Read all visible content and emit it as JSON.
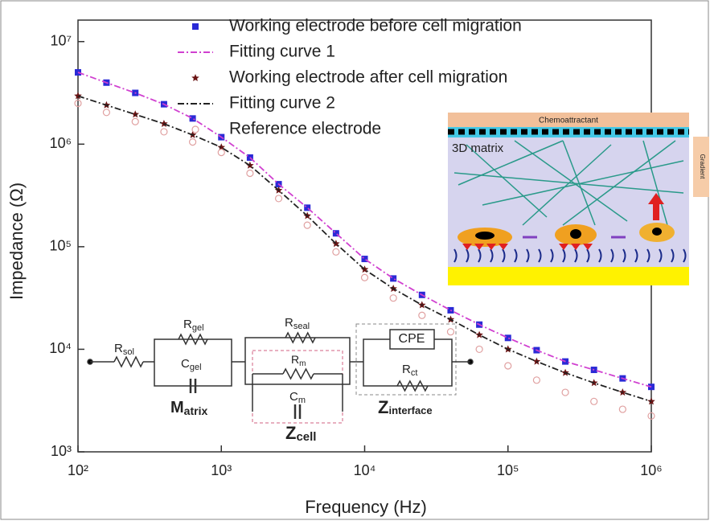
{
  "chart_data": {
    "type": "scatter",
    "xlabel": "Frequency (Hz)",
    "ylabel": "Impedance (Ω)",
    "log_x": true,
    "log_y": true,
    "xlim": [
      100,
      1000000
    ],
    "ylim": [
      1000,
      16200000
    ],
    "xticks": [
      {
        "value": 100,
        "label": "10²"
      },
      {
        "value": 1000,
        "label": "10³"
      },
      {
        "value": 10000,
        "label": "10⁴"
      },
      {
        "value": 100000,
        "label": "10⁵"
      },
      {
        "value": 1000000,
        "label": "10⁶"
      }
    ],
    "yticks": [
      {
        "value": 1000,
        "label": "10³"
      },
      {
        "value": 10000,
        "label": "10⁴"
      },
      {
        "value": 100000,
        "label": "10⁵"
      },
      {
        "value": 1000000,
        "label": "10⁶"
      },
      {
        "value": 10000000,
        "label": "10⁷"
      }
    ],
    "x": [
      100,
      158,
      251,
      398,
      631,
      1000,
      1585,
      2512,
      3981,
      6310,
      10000,
      15849,
      25119,
      39811,
      63096,
      100000,
      158489,
      251189,
      398107,
      630957,
      1000000
    ],
    "series": [
      {
        "name": "Working electrode before cell migration",
        "color": "#2a2ad6",
        "marker": "square",
        "values": [
          5010000,
          3980000,
          3160000,
          2450000,
          1780000,
          1170000,
          740000,
          407000,
          240000,
          135000,
          76000,
          49000,
          33900,
          24000,
          17400,
          12900,
          9800,
          7600,
          6300,
          5200,
          4300
        ]
      },
      {
        "name": "Fitting curve 1",
        "color": "#d040d0",
        "marker": "dashdot",
        "values": [
          5010000,
          3980000,
          3160000,
          2450000,
          1780000,
          1170000,
          740000,
          407000,
          240000,
          135000,
          76000,
          49000,
          33900,
          24000,
          17400,
          12900,
          9800,
          7600,
          6300,
          5200,
          4300
        ]
      },
      {
        "name": "Working electrode after cell migration",
        "color": "#6a1414",
        "marker": "star",
        "values": [
          2950000,
          2400000,
          1950000,
          1580000,
          1230000,
          930000,
          620000,
          355000,
          200000,
          107000,
          60000,
          39000,
          27000,
          19500,
          13800,
          10000,
          7600,
          5900,
          4700,
          3800,
          3100
        ]
      },
      {
        "name": "Fitting curve 2",
        "color": "#222222",
        "marker": "dashdot",
        "values": [
          2950000,
          2400000,
          1950000,
          1580000,
          1230000,
          930000,
          620000,
          355000,
          200000,
          107000,
          60000,
          39000,
          27000,
          19500,
          13800,
          10000,
          7600,
          5900,
          4700,
          3800,
          3100
        ]
      },
      {
        "name": "Reference electrode",
        "color": "#e0a0a0",
        "marker": "circle",
        "values": [
          2500000,
          2040000,
          1660000,
          1320000,
          1050000,
          830000,
          520000,
          295000,
          162000,
          89000,
          50000,
          31600,
          21400,
          14800,
          10000,
          6900,
          5000,
          3800,
          3100,
          2600,
          2240
        ]
      }
    ],
    "circuit": {
      "r_sol": {
        "base": "R",
        "sub": "sol"
      },
      "r_gel": {
        "base": "R",
        "sub": "gel"
      },
      "c_gel": {
        "base": "C",
        "sub": "gel"
      },
      "matrix": {
        "base": "M",
        "sub": "atrix"
      },
      "r_seal": {
        "base": "R",
        "sub": "seal"
      },
      "r_m": {
        "base": "R",
        "sub": "m"
      },
      "c_m": {
        "base": "C",
        "sub": "m"
      },
      "z_cell": {
        "base": "Z",
        "sub": "cell"
      },
      "cpe": "CPE",
      "r_ct": {
        "base": "R",
        "sub": "ct"
      },
      "z_interface": {
        "base": "Z",
        "sub": "interface"
      }
    },
    "schematic": {
      "top_label": "Chemoattractant",
      "matrix_label": "3D matrix",
      "side_label": "Gradient"
    }
  }
}
